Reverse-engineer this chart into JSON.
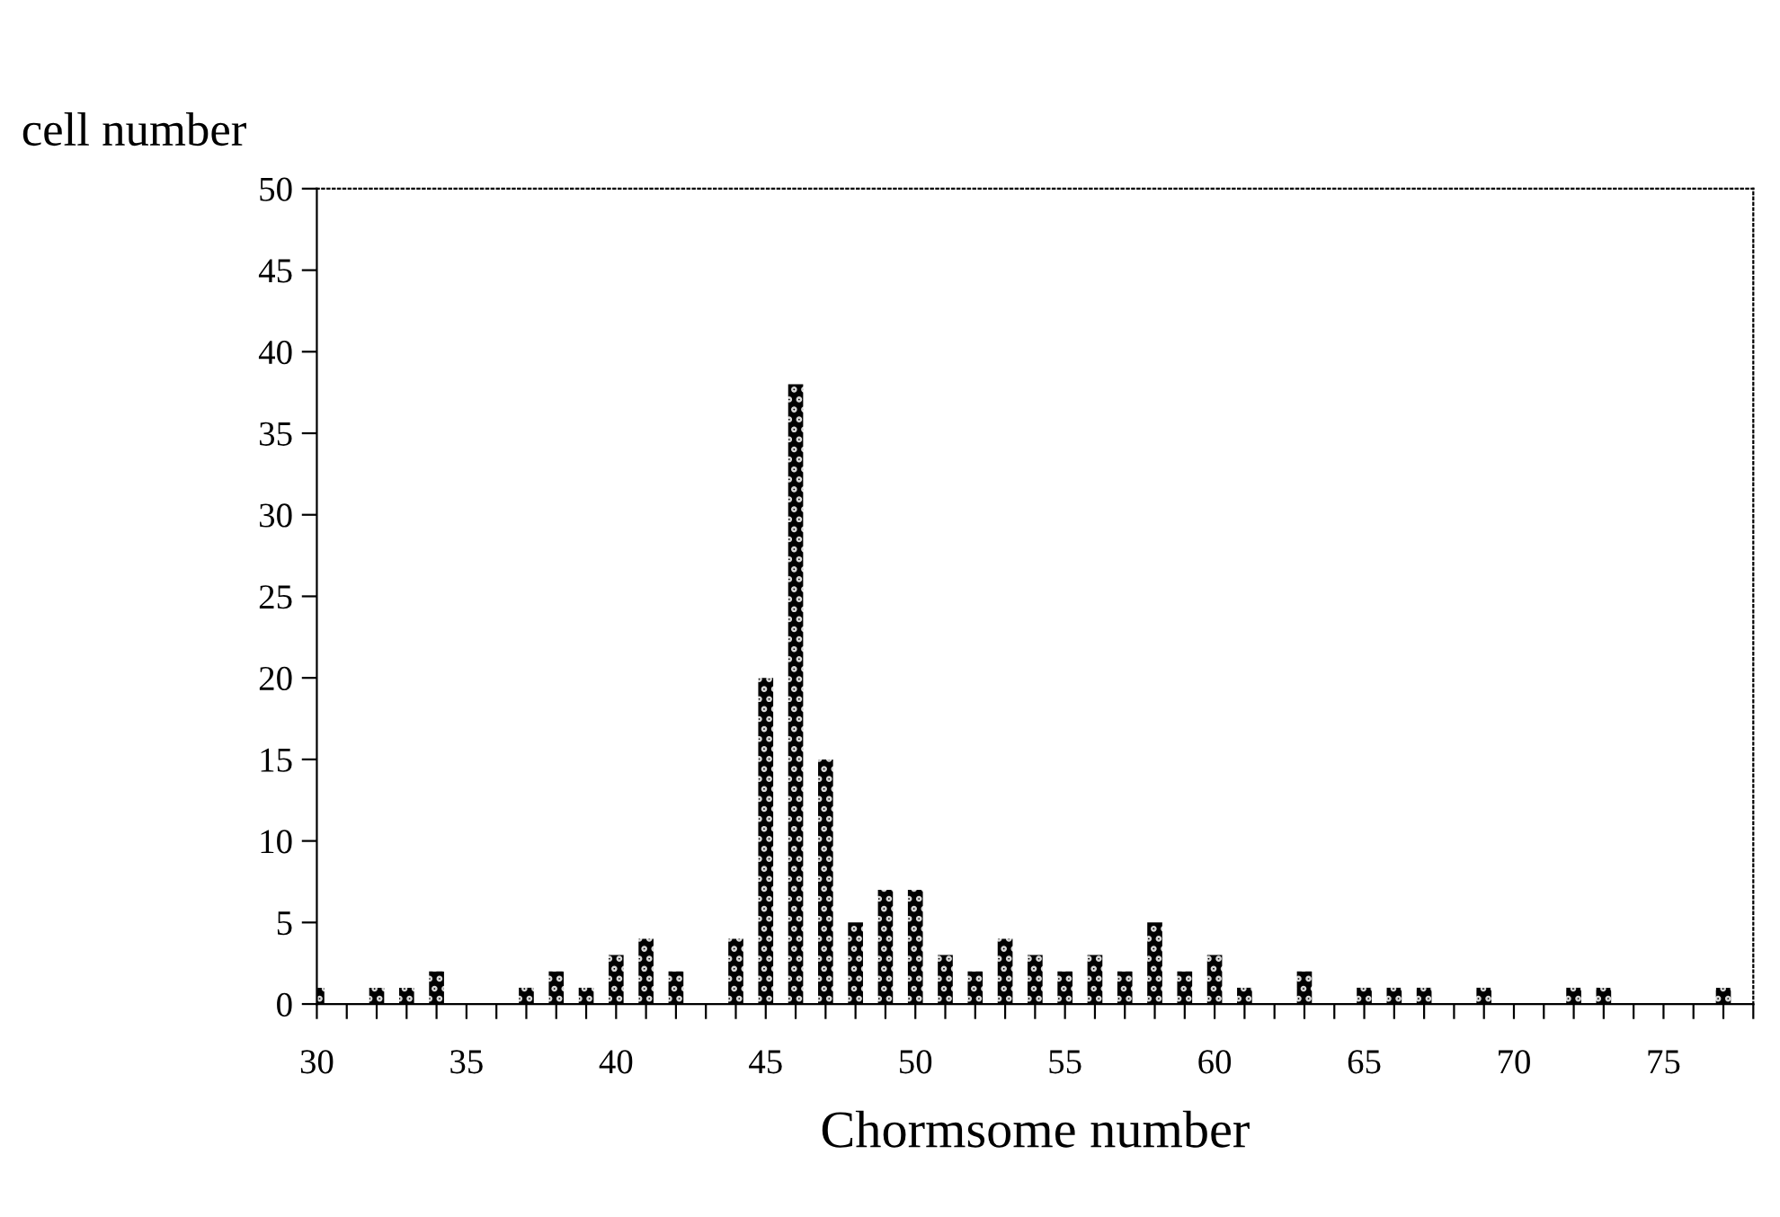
{
  "chart_data": {
    "type": "bar",
    "xlabel": "Chormsome number",
    "ylabel": "cell number",
    "color": "#000000",
    "x": [
      30,
      32,
      33,
      34,
      37,
      38,
      39,
      40,
      41,
      42,
      44,
      45,
      46,
      47,
      48,
      49,
      50,
      51,
      52,
      53,
      54,
      55,
      56,
      57,
      58,
      59,
      60,
      61,
      63,
      65,
      66,
      67,
      69,
      72,
      73,
      77
    ],
    "values": [
      1,
      1,
      1,
      2,
      1,
      2,
      1,
      3,
      4,
      2,
      4,
      20,
      38,
      15,
      5,
      7,
      7,
      3,
      2,
      4,
      3,
      2,
      3,
      2,
      5,
      2,
      3,
      1,
      2,
      1,
      1,
      1,
      1,
      1,
      1,
      1
    ],
    "xlim": [
      30,
      78
    ],
    "ylim": [
      0,
      50
    ],
    "xticks": [
      30,
      {
        "value": 31,
        "label": null
      },
      {
        "value": 32,
        "label": null
      },
      {
        "value": 33,
        "label": null
      },
      {
        "value": 34,
        "label": null
      },
      35,
      {
        "value": 36,
        "label": null
      },
      {
        "value": 37,
        "label": null
      },
      {
        "value": 38,
        "label": null
      },
      {
        "value": 39,
        "label": null
      },
      40,
      {
        "value": 41,
        "label": null
      },
      {
        "value": 42,
        "label": null
      },
      {
        "value": 43,
        "label": null
      },
      {
        "value": 44,
        "label": null
      },
      45,
      {
        "value": 46,
        "label": null
      },
      {
        "value": 47,
        "label": null
      },
      {
        "value": 48,
        "label": null
      },
      {
        "value": 49,
        "label": null
      },
      50,
      {
        "value": 51,
        "label": null
      },
      {
        "value": 52,
        "label": null
      },
      {
        "value": 53,
        "label": null
      },
      {
        "value": 54,
        "label": null
      },
      55,
      {
        "value": 56,
        "label": null
      },
      {
        "value": 57,
        "label": null
      },
      {
        "value": 58,
        "label": null
      },
      {
        "value": 59,
        "label": null
      },
      60,
      {
        "value": 61,
        "label": null
      },
      {
        "value": 62,
        "label": null
      },
      {
        "value": 63,
        "label": null
      },
      {
        "value": 64,
        "label": null
      },
      65,
      {
        "value": 66,
        "label": null
      },
      {
        "value": 67,
        "label": null
      },
      {
        "value": 68,
        "label": null
      },
      {
        "value": 69,
        "label": null
      },
      70,
      {
        "value": 71,
        "label": null
      },
      {
        "value": 72,
        "label": null
      },
      {
        "value": 73,
        "label": null
      },
      {
        "value": 74,
        "label": null
      },
      75,
      {
        "value": 76,
        "label": null
      },
      {
        "value": 77,
        "label": null
      },
      {
        "value": 78,
        "label": null
      }
    ],
    "yticks": [
      0,
      5,
      10,
      15,
      20,
      25,
      30,
      35,
      40,
      45,
      50
    ],
    "grid": false
  }
}
